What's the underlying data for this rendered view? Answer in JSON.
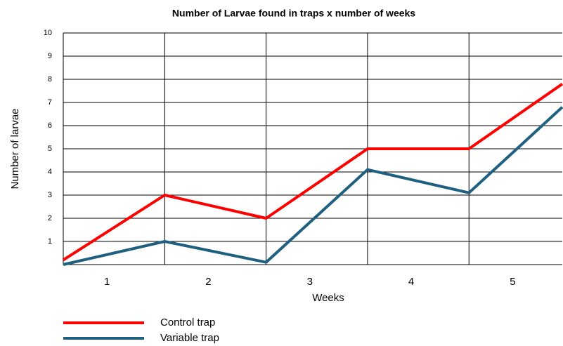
{
  "chart_data": {
    "type": "line",
    "title": "Number of Larvae found in traps x  number of weeks",
    "x_label": "Weeks",
    "y_label": "Number of larvae",
    "x": [
      0.5,
      1.5,
      2.5,
      3.5,
      4.5,
      5.42
    ],
    "series": [
      {
        "name": "Control trap",
        "color": "#ff0000",
        "values": [
          0.2,
          3,
          2,
          5,
          5,
          7.8
        ]
      },
      {
        "name": "Variable trap",
        "color": "#1f5f7f",
        "values": [
          0,
          1,
          0.1,
          4.1,
          3.1,
          6.8
        ]
      }
    ],
    "xlim": [
      0.5,
      5.42
    ],
    "xticks": [
      1,
      2,
      3,
      4,
      5
    ],
    "ylim": [
      0,
      10
    ],
    "yticks": [
      1,
      2,
      3,
      4,
      5,
      6,
      7,
      8,
      9,
      10
    ],
    "grid": true,
    "legend": "bottom-left"
  }
}
